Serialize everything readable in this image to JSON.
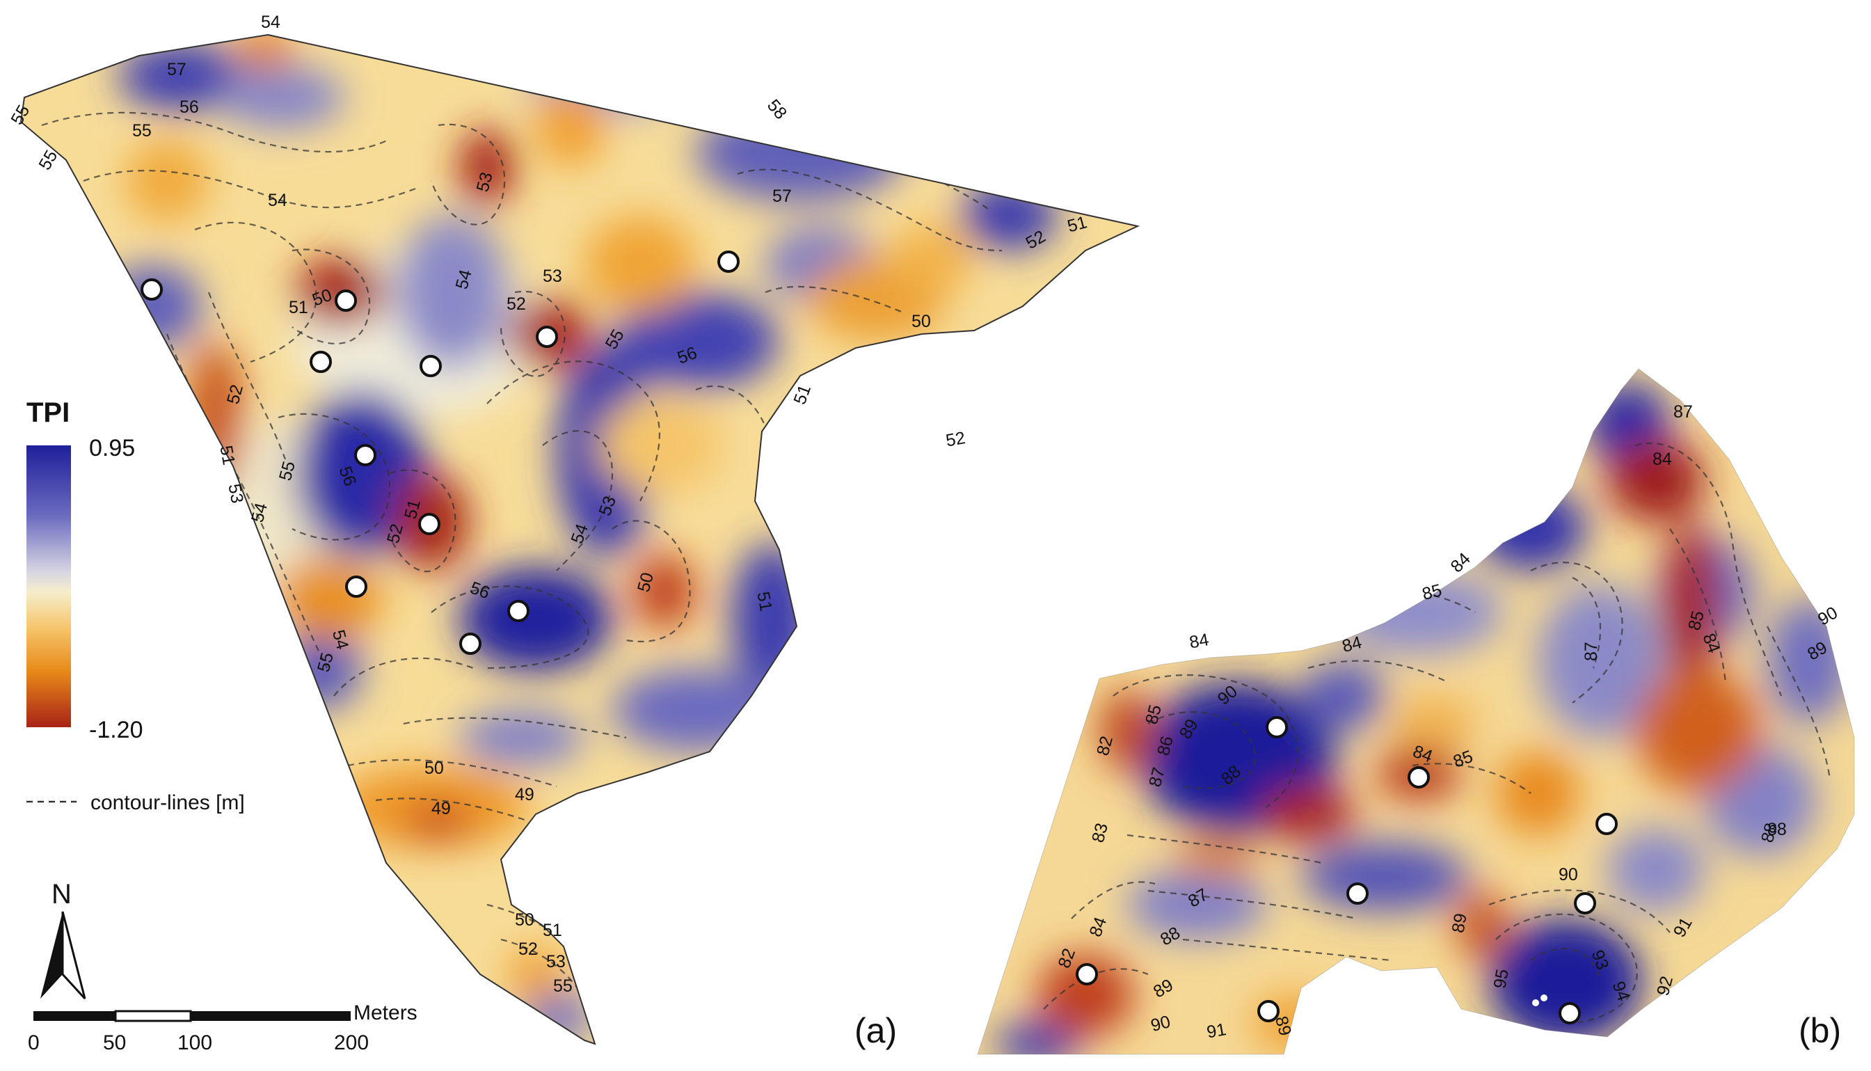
{
  "legend": {
    "title": "TPI",
    "max_label": "0.95",
    "min_label": "-1.20",
    "contour_label": "contour-lines [m]",
    "colors": [
      "#1f1f9a",
      "#4a4ab8",
      "#8a8acb",
      "#e8e4d0",
      "#f6d98a",
      "#f0a030",
      "#e07a10",
      "#b03a14",
      "#9e1e1e"
    ]
  },
  "north_arrow": {
    "label": "N"
  },
  "scale_bar": {
    "unit": "Meters",
    "ticks": [
      "0",
      "50",
      "100",
      "200"
    ]
  },
  "panels": {
    "a": {
      "tag": "(a)",
      "contour_labels": [
        "54",
        "57",
        "56",
        "55",
        "55",
        "55",
        "53",
        "54",
        "58",
        "57",
        "52",
        "51",
        "54",
        "53",
        "50",
        "51",
        "52",
        "50",
        "52",
        "55",
        "56",
        "51",
        "52",
        "51",
        "53",
        "54",
        "55",
        "56",
        "52",
        "51",
        "54",
        "53",
        "56",
        "50",
        "51",
        "54",
        "55",
        "50",
        "49",
        "49",
        "50",
        "51",
        "52",
        "53",
        "55"
      ]
    },
    "b": {
      "tag": "(b)",
      "contour_labels": [
        "87",
        "84",
        "84",
        "85",
        "84",
        "84",
        "90",
        "89",
        "85",
        "86",
        "87",
        "82",
        "83",
        "88",
        "84",
        "85",
        "87",
        "85",
        "84",
        "90",
        "89",
        "88",
        "87",
        "88",
        "89",
        "90",
        "91",
        "89",
        "82",
        "84",
        "89",
        "90",
        "91",
        "93",
        "94",
        "95",
        "92",
        "88"
      ]
    }
  }
}
